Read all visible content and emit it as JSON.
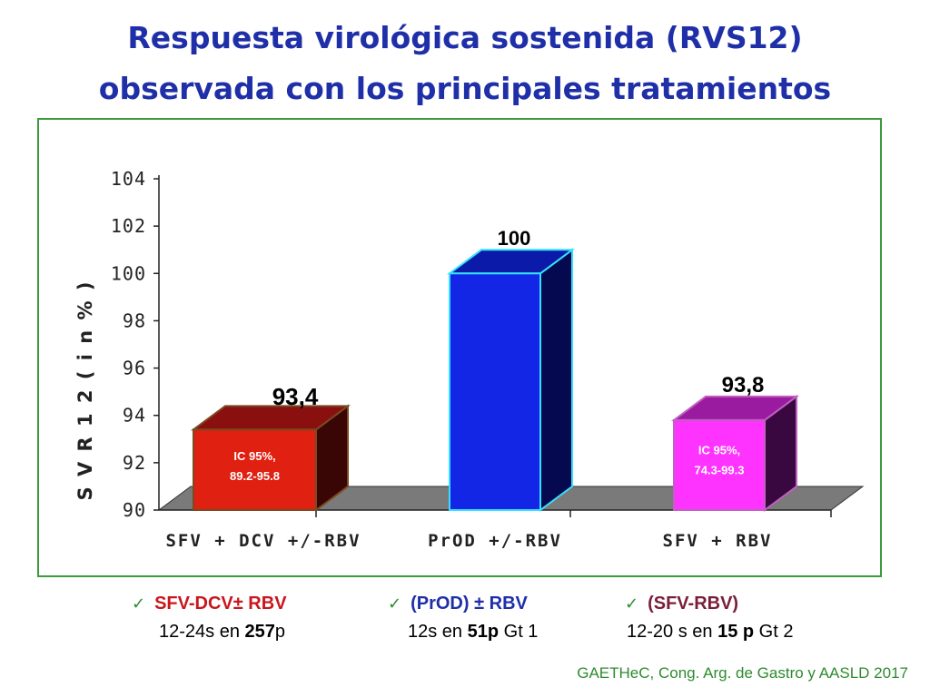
{
  "title_line1": "Respuesta virológica sostenida (RVS12)",
  "title_line2": "observada con los principales tratamientos",
  "chart_data": {
    "type": "bar",
    "ylabel": "S V R  1 2  ( i n  % )",
    "ylim": [
      90,
      104
    ],
    "yticks": [
      "104",
      "102",
      "100",
      "98",
      "96",
      "94",
      "92",
      "90"
    ],
    "categories": [
      "SFV + DCV +/-RBV",
      "PrOD +/-RBV",
      "SFV + RBV"
    ],
    "values": [
      93.4,
      100,
      93.8
    ],
    "value_labels": [
      "93,4",
      "100",
      "93,8"
    ],
    "ci_labels": [
      {
        "line1": "IC 95%,",
        "line2": "89.2-95.8"
      },
      {
        "line1": "",
        "line2": ""
      },
      {
        "line1": "IC 95%,",
        "line2": "74.3-99.3"
      }
    ],
    "colors": [
      {
        "front": "#e02010",
        "side": "#3a0505",
        "top": "#8a1010",
        "edge": "#7a4a20"
      },
      {
        "front": "#1326e6",
        "side": "#050a50",
        "top": "#0b1aa8",
        "edge": "#35e0ff"
      },
      {
        "front": "#ff33ff",
        "side": "#3a0840",
        "top": "#9a1aa0",
        "edge": "#c060c0"
      }
    ]
  },
  "legend": [
    {
      "check": "✓",
      "head": "SFV-DCV± RBV",
      "head_color": "#c8171d",
      "sub_prefix": "12-24s en ",
      "sub_bold": "257",
      "sub_suffix": "p"
    },
    {
      "check": "✓",
      "head": "(PrOD) ± RBV",
      "head_color": "#1f2fa8",
      "sub_prefix": "12s en ",
      "sub_bold": "51p",
      "sub_suffix": " Gt 1"
    },
    {
      "check": "✓",
      "head": "(SFV-RBV)",
      "head_color": "#7a1f3a",
      "sub_prefix": "12-20 s en ",
      "sub_bold": "15 p",
      "sub_suffix": " Gt 2"
    }
  ],
  "source": "GAETHeC, Cong. Arg. de Gastro y AASLD 2017"
}
